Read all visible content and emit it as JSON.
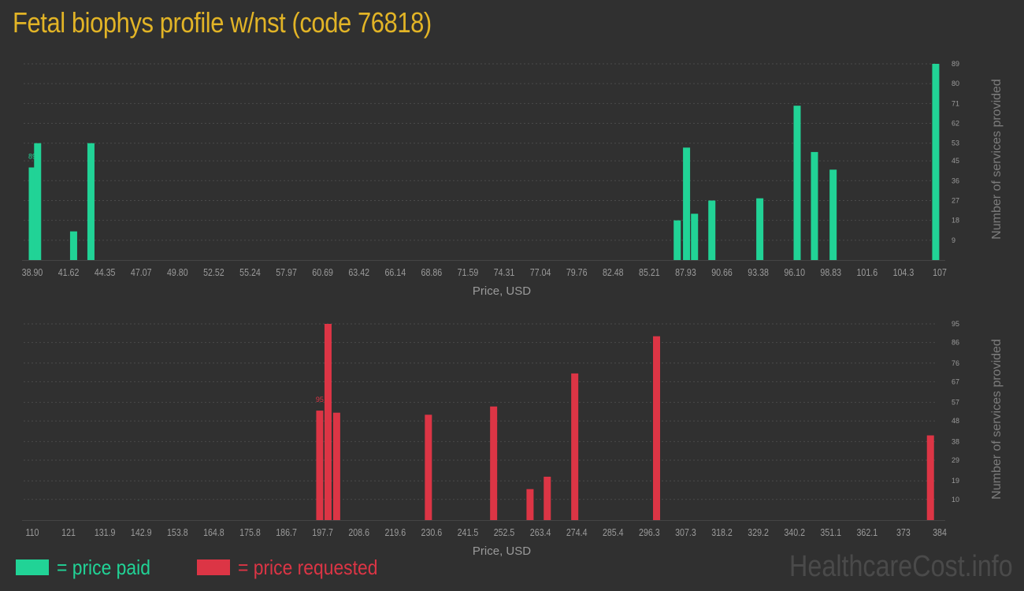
{
  "title": "Fetal biophys profile w/nst (code 76818)",
  "colors": {
    "paid": "#21d396",
    "requested": "#dc3545",
    "title": "#e2b426",
    "grid": "#4a4a4a"
  },
  "legend": {
    "paid": "= price paid",
    "requested": "= price requested"
  },
  "watermark": "HealthcareCost.info",
  "chart_data": [
    {
      "type": "bar",
      "series_name": "price paid",
      "xlabel": "Price, USD",
      "ylabel": "Number of services provided",
      "x_ticks": [
        "38.90",
        "41.62",
        "44.35",
        "47.07",
        "49.80",
        "52.52",
        "55.24",
        "57.97",
        "60.69",
        "63.42",
        "66.14",
        "68.86",
        "71.59",
        "74.31",
        "77.04",
        "79.76",
        "82.48",
        "85.21",
        "87.93",
        "90.66",
        "93.38",
        "96.10",
        "98.83",
        "101.6",
        "104.3",
        "107"
      ],
      "x_range": [
        38.9,
        107
      ],
      "y_ticks": [
        9,
        18,
        27,
        36,
        45,
        53,
        62,
        71,
        80,
        89
      ],
      "ylim": [
        0,
        89
      ],
      "max_label": "89",
      "bars": [
        {
          "x": 38.9,
          "y": 42
        },
        {
          "x": 39.3,
          "y": 53
        },
        {
          "x": 42.0,
          "y": 13
        },
        {
          "x": 43.3,
          "y": 53
        },
        {
          "x": 87.3,
          "y": 18
        },
        {
          "x": 88.0,
          "y": 51
        },
        {
          "x": 88.6,
          "y": 21
        },
        {
          "x": 89.9,
          "y": 27
        },
        {
          "x": 93.5,
          "y": 28
        },
        {
          "x": 96.3,
          "y": 70
        },
        {
          "x": 97.6,
          "y": 49
        },
        {
          "x": 99.0,
          "y": 41
        },
        {
          "x": 106.7,
          "y": 89
        }
      ]
    },
    {
      "type": "bar",
      "series_name": "price requested",
      "xlabel": "Price, USD",
      "ylabel": "Number of services provided",
      "x_ticks": [
        "110",
        "121",
        "131.9",
        "142.9",
        "153.8",
        "164.8",
        "175.8",
        "186.7",
        "197.7",
        "208.6",
        "219.6",
        "230.6",
        "241.5",
        "252.5",
        "263.4",
        "274.4",
        "285.4",
        "296.3",
        "307.3",
        "318.2",
        "329.2",
        "340.2",
        "351.1",
        "362.1",
        "373",
        "384"
      ],
      "x_range": [
        110,
        384
      ],
      "y_ticks": [
        10,
        19,
        29,
        38,
        48,
        57,
        67,
        76,
        86,
        95
      ],
      "ylim": [
        0,
        95
      ],
      "max_label": "95",
      "bars": [
        {
          "x": 196.8,
          "y": 53
        },
        {
          "x": 199.3,
          "y": 95
        },
        {
          "x": 201.9,
          "y": 52
        },
        {
          "x": 229.6,
          "y": 51
        },
        {
          "x": 249.3,
          "y": 55
        },
        {
          "x": 260.3,
          "y": 15
        },
        {
          "x": 265.5,
          "y": 21
        },
        {
          "x": 273.8,
          "y": 71
        },
        {
          "x": 298.5,
          "y": 89
        },
        {
          "x": 381.2,
          "y": 41
        }
      ]
    }
  ]
}
